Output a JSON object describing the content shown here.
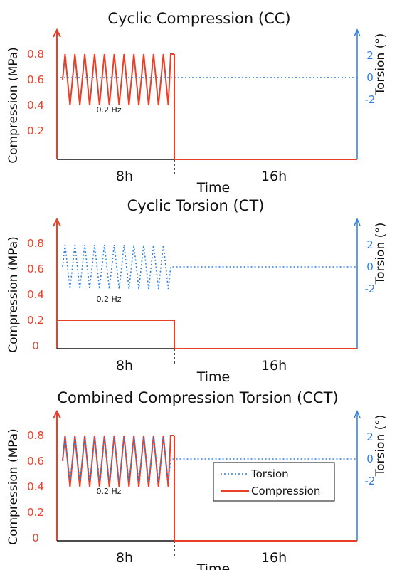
{
  "chart_data": [
    {
      "type": "line",
      "title": "Cyclic Compression (CC)",
      "xlabel": "Time",
      "ylabel_left": "Compression (MPa)",
      "ylabel_right": "Torsion (°)",
      "segments": [
        "8h",
        "16h"
      ],
      "frequency_label": "0.2 Hz",
      "left_ticks": [
        "0.8",
        "0.6",
        "0.4",
        "0.2"
      ],
      "right_ticks": [
        "2",
        "0",
        "-2"
      ],
      "left_ylim": [
        0,
        0.85
      ],
      "right_ylim": [
        -5,
        3
      ],
      "series": [
        {
          "name": "Compression",
          "color": "#e8412a",
          "style": "solid",
          "loading": {
            "min": 0.4,
            "max": 0.8,
            "cycles": 11,
            "period_h": [
              0,
              8
            ]
          },
          "rest": {
            "value": 0,
            "period_h": [
              8,
              24
            ]
          }
        },
        {
          "name": "Torsion",
          "color": "#2f7fe0",
          "style": "dotted",
          "loading": {
            "value": 0,
            "period_h": [
              0,
              24
            ]
          }
        }
      ]
    },
    {
      "type": "line",
      "title": "Cyclic Torsion (CT)",
      "xlabel": "Time",
      "ylabel_left": "Compression (MPa)",
      "ylabel_right": "Torsion (°)",
      "segments": [
        "8h",
        "16h"
      ],
      "frequency_label": "0.2 Hz",
      "left_ticks": [
        "0.8",
        "0.6",
        "0.4",
        "0.2",
        "0"
      ],
      "right_ticks": [
        "2",
        "0",
        "-2"
      ],
      "left_ylim": [
        0,
        0.85
      ],
      "right_ylim": [
        -5,
        3
      ],
      "series": [
        {
          "name": "Compression",
          "color": "#e8412a",
          "style": "solid",
          "loading": {
            "value": 0.2,
            "period_h": [
              0,
              8
            ]
          },
          "rest": {
            "value": 0,
            "period_h": [
              8,
              24
            ]
          }
        },
        {
          "name": "Torsion",
          "color": "#2f7fe0",
          "style": "dotted",
          "loading": {
            "min": -2,
            "max": 2,
            "cycles": 11,
            "period_h": [
              0,
              8
            ]
          },
          "rest": {
            "value": 0,
            "period_h": [
              8,
              24
            ]
          }
        }
      ]
    },
    {
      "type": "line",
      "title": "Combined Compression Torsion (CCT)",
      "xlabel": "Time",
      "ylabel_left": "Compression (MPa)",
      "ylabel_right": "Torsion (°)",
      "segments": [
        "8h",
        "16h"
      ],
      "frequency_label": "0.2 Hz",
      "left_ticks": [
        "0.8",
        "0.6",
        "0.4",
        "0.2",
        "0"
      ],
      "right_ticks": [
        "2",
        "0",
        "-2"
      ],
      "left_ylim": [
        0,
        0.85
      ],
      "right_ylim": [
        -5,
        3
      ],
      "legend": [
        "Torsion",
        "Compression"
      ],
      "legend_position": "bottom-right",
      "series": [
        {
          "name": "Compression",
          "color": "#e8412a",
          "style": "solid",
          "loading": {
            "min": 0.4,
            "max": 0.8,
            "cycles": 11,
            "period_h": [
              0,
              8
            ]
          },
          "rest": {
            "value": 0,
            "period_h": [
              8,
              24
            ]
          }
        },
        {
          "name": "Torsion",
          "color": "#2f7fe0",
          "style": "dotted",
          "loading": {
            "min": -2,
            "max": 2,
            "cycles": 11,
            "period_h": [
              0,
              8
            ]
          },
          "rest": {
            "value": 0,
            "period_h": [
              8,
              24
            ]
          }
        }
      ]
    }
  ]
}
